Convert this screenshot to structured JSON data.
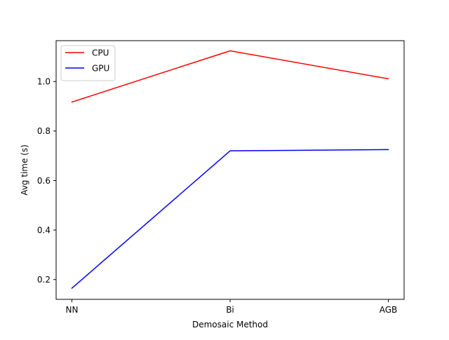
{
  "chart_data": {
    "type": "line",
    "title": "",
    "xlabel": "Demosaic Method",
    "ylabel": "Avg time (s)",
    "categories": [
      "NN",
      "Bi",
      "AGB"
    ],
    "ylim": [
      0.12,
      1.165
    ],
    "yticks": [
      0.2,
      0.4,
      0.6,
      0.8,
      1.0
    ],
    "ytick_labels": [
      "0.2",
      "0.4",
      "0.6",
      "0.8",
      "1.0"
    ],
    "grid": false,
    "legend_position": "top-left",
    "series": [
      {
        "name": "CPU",
        "color": "#ff0000",
        "values": [
          0.917,
          1.124,
          1.011
        ]
      },
      {
        "name": "GPU",
        "color": "#0000ff",
        "values": [
          0.165,
          0.72,
          0.725
        ]
      }
    ]
  }
}
